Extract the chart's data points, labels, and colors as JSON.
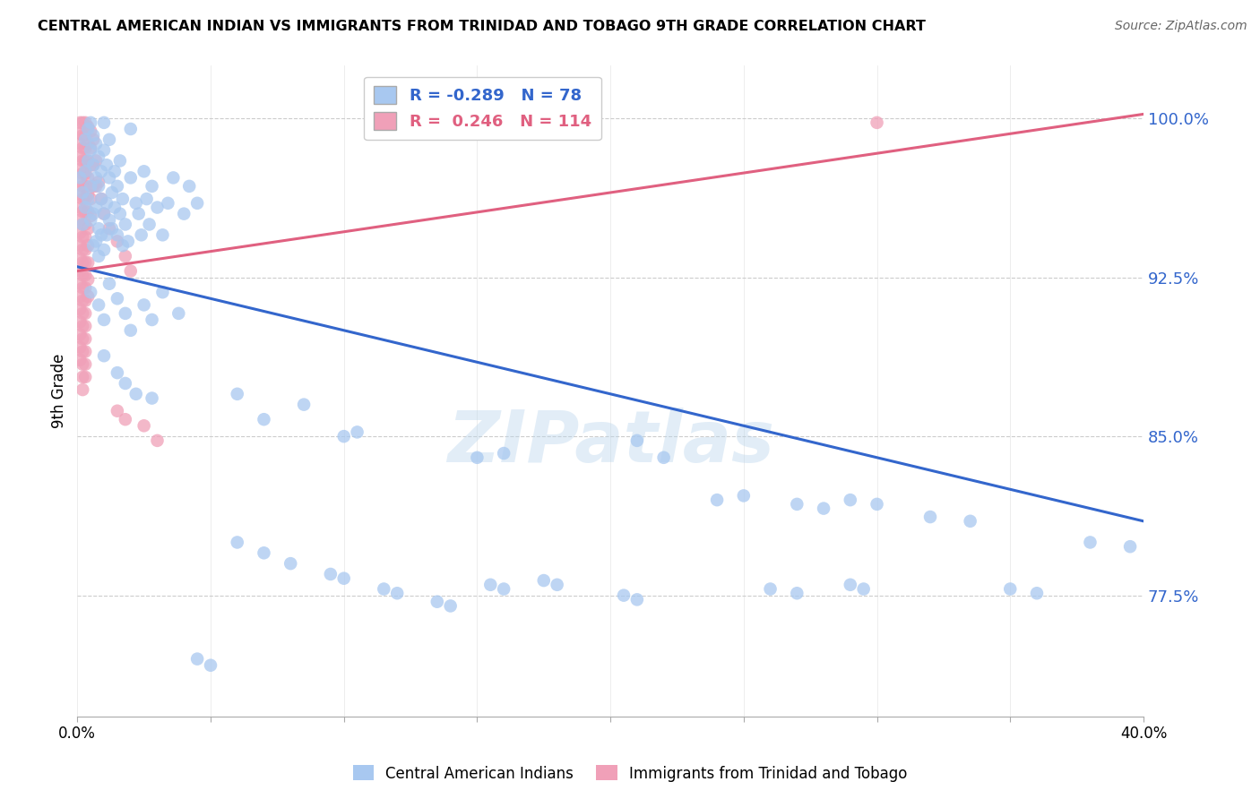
{
  "title": "CENTRAL AMERICAN INDIAN VS IMMIGRANTS FROM TRINIDAD AND TOBAGO 9TH GRADE CORRELATION CHART",
  "source": "Source: ZipAtlas.com",
  "ylabel": "9th Grade",
  "ytick_labels": [
    "77.5%",
    "85.0%",
    "92.5%",
    "100.0%"
  ],
  "ytick_values": [
    0.775,
    0.85,
    0.925,
    1.0
  ],
  "xlim": [
    0.0,
    0.4
  ],
  "ylim": [
    0.718,
    1.025
  ],
  "blue_R": -0.289,
  "blue_N": 78,
  "pink_R": 0.246,
  "pink_N": 114,
  "blue_color": "#A8C8F0",
  "pink_color": "#F0A0B8",
  "blue_line_color": "#3366CC",
  "pink_line_color": "#E06080",
  "legend_label_blue": "Central American Indians",
  "legend_label_pink": "Immigrants from Trinidad and Tobago",
  "watermark_text": "ZIPatlas",
  "blue_line": [
    [
      0.0,
      0.93
    ],
    [
      0.4,
      0.81
    ]
  ],
  "pink_line": [
    [
      0.0,
      0.928
    ],
    [
      0.4,
      1.002
    ]
  ],
  "blue_points": [
    [
      0.001,
      0.972
    ],
    [
      0.002,
      0.965
    ],
    [
      0.002,
      0.95
    ],
    [
      0.003,
      0.99
    ],
    [
      0.003,
      0.975
    ],
    [
      0.003,
      0.958
    ],
    [
      0.004,
      0.995
    ],
    [
      0.004,
      0.98
    ],
    [
      0.004,
      0.962
    ],
    [
      0.005,
      0.998
    ],
    [
      0.005,
      0.985
    ],
    [
      0.005,
      0.968
    ],
    [
      0.005,
      0.952
    ],
    [
      0.006,
      0.992
    ],
    [
      0.006,
      0.978
    ],
    [
      0.006,
      0.955
    ],
    [
      0.006,
      0.94
    ],
    [
      0.007,
      0.988
    ],
    [
      0.007,
      0.972
    ],
    [
      0.007,
      0.958
    ],
    [
      0.007,
      0.942
    ],
    [
      0.008,
      0.982
    ],
    [
      0.008,
      0.968
    ],
    [
      0.008,
      0.948
    ],
    [
      0.008,
      0.935
    ],
    [
      0.009,
      0.975
    ],
    [
      0.009,
      0.962
    ],
    [
      0.009,
      0.945
    ],
    [
      0.01,
      0.998
    ],
    [
      0.01,
      0.985
    ],
    [
      0.01,
      0.955
    ],
    [
      0.01,
      0.938
    ],
    [
      0.011,
      0.978
    ],
    [
      0.011,
      0.96
    ],
    [
      0.011,
      0.945
    ],
    [
      0.012,
      0.99
    ],
    [
      0.012,
      0.972
    ],
    [
      0.012,
      0.952
    ],
    [
      0.013,
      0.965
    ],
    [
      0.013,
      0.948
    ],
    [
      0.014,
      0.975
    ],
    [
      0.014,
      0.958
    ],
    [
      0.015,
      0.968
    ],
    [
      0.015,
      0.945
    ],
    [
      0.016,
      0.98
    ],
    [
      0.016,
      0.955
    ],
    [
      0.017,
      0.962
    ],
    [
      0.017,
      0.94
    ],
    [
      0.018,
      0.95
    ],
    [
      0.019,
      0.942
    ],
    [
      0.02,
      0.995
    ],
    [
      0.02,
      0.972
    ],
    [
      0.022,
      0.96
    ],
    [
      0.023,
      0.955
    ],
    [
      0.024,
      0.945
    ],
    [
      0.025,
      0.975
    ],
    [
      0.026,
      0.962
    ],
    [
      0.027,
      0.95
    ],
    [
      0.028,
      0.968
    ],
    [
      0.03,
      0.958
    ],
    [
      0.032,
      0.945
    ],
    [
      0.034,
      0.96
    ],
    [
      0.036,
      0.972
    ],
    [
      0.04,
      0.955
    ],
    [
      0.042,
      0.968
    ],
    [
      0.045,
      0.96
    ],
    [
      0.005,
      0.918
    ],
    [
      0.008,
      0.912
    ],
    [
      0.01,
      0.905
    ],
    [
      0.012,
      0.922
    ],
    [
      0.015,
      0.915
    ],
    [
      0.018,
      0.908
    ],
    [
      0.02,
      0.9
    ],
    [
      0.025,
      0.912
    ],
    [
      0.028,
      0.905
    ],
    [
      0.032,
      0.918
    ],
    [
      0.038,
      0.908
    ],
    [
      0.01,
      0.888
    ],
    [
      0.015,
      0.88
    ],
    [
      0.018,
      0.875
    ],
    [
      0.022,
      0.87
    ],
    [
      0.028,
      0.868
    ],
    [
      0.06,
      0.87
    ],
    [
      0.07,
      0.858
    ],
    [
      0.085,
      0.865
    ],
    [
      0.1,
      0.85
    ],
    [
      0.105,
      0.852
    ],
    [
      0.15,
      0.84
    ],
    [
      0.16,
      0.842
    ],
    [
      0.21,
      0.848
    ],
    [
      0.22,
      0.84
    ],
    [
      0.24,
      0.82
    ],
    [
      0.25,
      0.822
    ],
    [
      0.27,
      0.818
    ],
    [
      0.28,
      0.816
    ],
    [
      0.29,
      0.82
    ],
    [
      0.3,
      0.818
    ],
    [
      0.32,
      0.812
    ],
    [
      0.335,
      0.81
    ],
    [
      0.38,
      0.8
    ],
    [
      0.395,
      0.798
    ],
    [
      0.06,
      0.8
    ],
    [
      0.07,
      0.795
    ],
    [
      0.08,
      0.79
    ],
    [
      0.095,
      0.785
    ],
    [
      0.1,
      0.783
    ],
    [
      0.115,
      0.778
    ],
    [
      0.12,
      0.776
    ],
    [
      0.135,
      0.772
    ],
    [
      0.14,
      0.77
    ],
    [
      0.155,
      0.78
    ],
    [
      0.16,
      0.778
    ],
    [
      0.175,
      0.782
    ],
    [
      0.18,
      0.78
    ],
    [
      0.205,
      0.775
    ],
    [
      0.21,
      0.773
    ],
    [
      0.26,
      0.778
    ],
    [
      0.27,
      0.776
    ],
    [
      0.29,
      0.78
    ],
    [
      0.295,
      0.778
    ],
    [
      0.35,
      0.778
    ],
    [
      0.36,
      0.776
    ],
    [
      0.045,
      0.745
    ],
    [
      0.05,
      0.742
    ]
  ],
  "pink_points": [
    [
      0.001,
      0.998
    ],
    [
      0.001,
      0.993
    ],
    [
      0.001,
      0.988
    ],
    [
      0.001,
      0.982
    ],
    [
      0.001,
      0.976
    ],
    [
      0.001,
      0.97
    ],
    [
      0.001,
      0.964
    ],
    [
      0.001,
      0.958
    ],
    [
      0.001,
      0.952
    ],
    [
      0.001,
      0.946
    ],
    [
      0.001,
      0.94
    ],
    [
      0.001,
      0.934
    ],
    [
      0.001,
      0.928
    ],
    [
      0.001,
      0.922
    ],
    [
      0.001,
      0.916
    ],
    [
      0.001,
      0.91
    ],
    [
      0.001,
      0.904
    ],
    [
      0.001,
      0.898
    ],
    [
      0.001,
      0.892
    ],
    [
      0.001,
      0.886
    ],
    [
      0.002,
      0.998
    ],
    [
      0.002,
      0.992
    ],
    [
      0.002,
      0.986
    ],
    [
      0.002,
      0.98
    ],
    [
      0.002,
      0.974
    ],
    [
      0.002,
      0.968
    ],
    [
      0.002,
      0.962
    ],
    [
      0.002,
      0.956
    ],
    [
      0.002,
      0.95
    ],
    [
      0.002,
      0.944
    ],
    [
      0.002,
      0.938
    ],
    [
      0.002,
      0.932
    ],
    [
      0.002,
      0.926
    ],
    [
      0.002,
      0.92
    ],
    [
      0.002,
      0.914
    ],
    [
      0.002,
      0.908
    ],
    [
      0.002,
      0.902
    ],
    [
      0.002,
      0.896
    ],
    [
      0.002,
      0.89
    ],
    [
      0.002,
      0.884
    ],
    [
      0.002,
      0.878
    ],
    [
      0.002,
      0.872
    ],
    [
      0.003,
      0.998
    ],
    [
      0.003,
      0.992
    ],
    [
      0.003,
      0.986
    ],
    [
      0.003,
      0.98
    ],
    [
      0.003,
      0.974
    ],
    [
      0.003,
      0.968
    ],
    [
      0.003,
      0.962
    ],
    [
      0.003,
      0.956
    ],
    [
      0.003,
      0.95
    ],
    [
      0.003,
      0.944
    ],
    [
      0.003,
      0.938
    ],
    [
      0.003,
      0.932
    ],
    [
      0.003,
      0.926
    ],
    [
      0.003,
      0.92
    ],
    [
      0.003,
      0.914
    ],
    [
      0.003,
      0.908
    ],
    [
      0.003,
      0.902
    ],
    [
      0.003,
      0.896
    ],
    [
      0.003,
      0.89
    ],
    [
      0.003,
      0.884
    ],
    [
      0.003,
      0.878
    ],
    [
      0.004,
      0.996
    ],
    [
      0.004,
      0.988
    ],
    [
      0.004,
      0.98
    ],
    [
      0.004,
      0.972
    ],
    [
      0.004,
      0.964
    ],
    [
      0.004,
      0.956
    ],
    [
      0.004,
      0.948
    ],
    [
      0.004,
      0.94
    ],
    [
      0.004,
      0.932
    ],
    [
      0.004,
      0.924
    ],
    [
      0.004,
      0.916
    ],
    [
      0.005,
      0.994
    ],
    [
      0.005,
      0.986
    ],
    [
      0.005,
      0.978
    ],
    [
      0.005,
      0.962
    ],
    [
      0.005,
      0.954
    ],
    [
      0.006,
      0.99
    ],
    [
      0.006,
      0.978
    ],
    [
      0.006,
      0.968
    ],
    [
      0.007,
      0.98
    ],
    [
      0.007,
      0.968
    ],
    [
      0.008,
      0.97
    ],
    [
      0.009,
      0.962
    ],
    [
      0.01,
      0.955
    ],
    [
      0.012,
      0.948
    ],
    [
      0.015,
      0.942
    ],
    [
      0.018,
      0.935
    ],
    [
      0.02,
      0.928
    ],
    [
      0.015,
      0.862
    ],
    [
      0.018,
      0.858
    ],
    [
      0.025,
      0.855
    ],
    [
      0.03,
      0.848
    ],
    [
      0.3,
      0.998
    ]
  ]
}
